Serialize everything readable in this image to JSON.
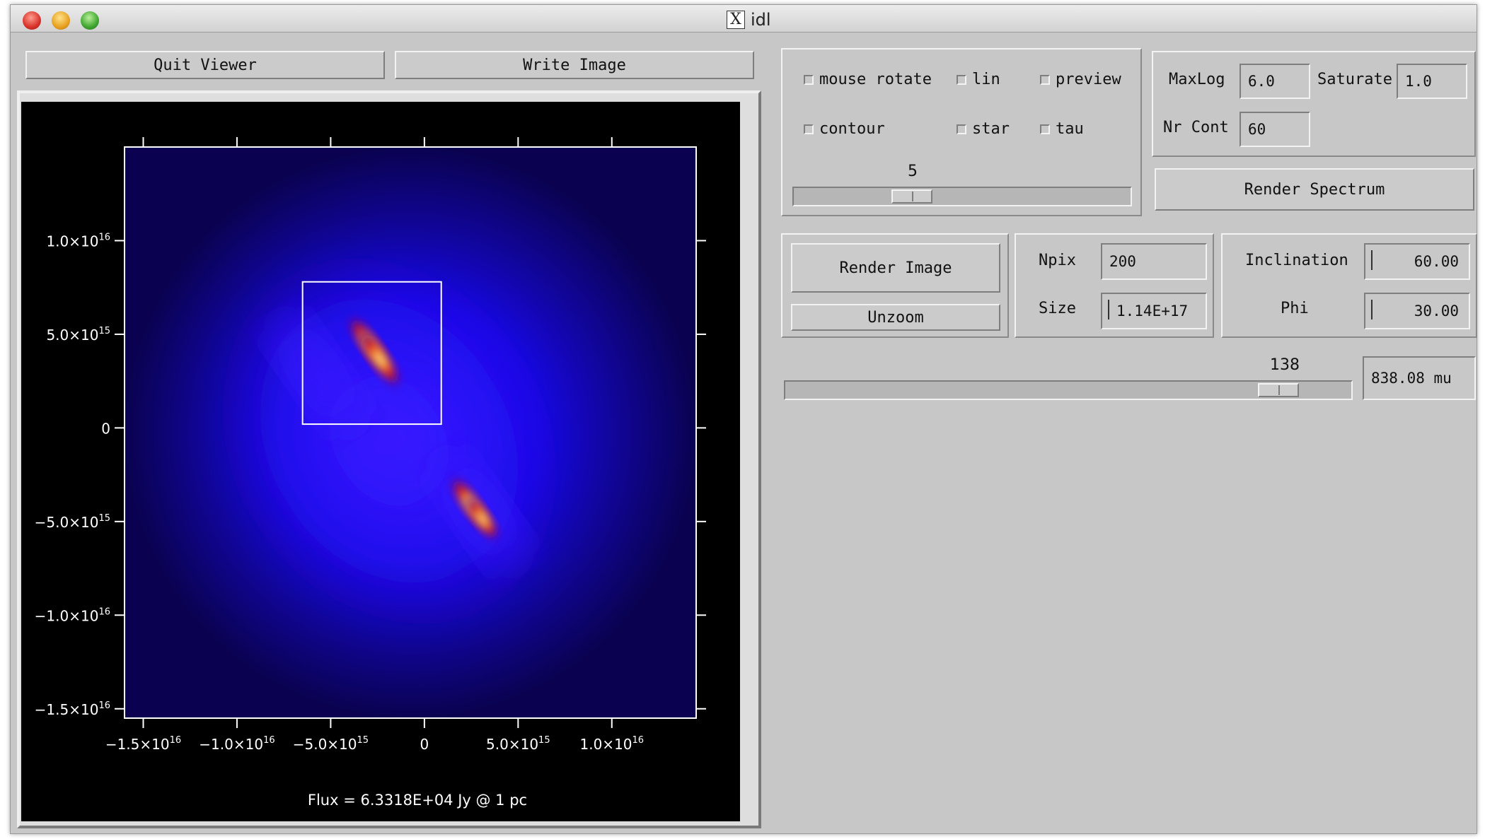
{
  "window": {
    "title": "idl"
  },
  "buttons": {
    "quit": "Quit Viewer",
    "write": "Write Image",
    "render_spectrum": "Render Spectrum",
    "render_image": "Render Image",
    "unzoom": "Unzoom"
  },
  "checkboxes": {
    "mouse_rotate": "mouse rotate",
    "lin": "lin",
    "preview": "preview",
    "contour": "contour",
    "star": "star",
    "tau": "tau"
  },
  "fields": {
    "maxlog_label": "MaxLog",
    "maxlog_value": "6.0",
    "saturate_label": "Saturate",
    "saturate_value": "1.0",
    "nrcont_label": "Nr Cont",
    "nrcont_value": "60",
    "npix_label": "Npix",
    "npix_value": "200",
    "size_label": "Size",
    "size_value": "1.14E+17",
    "inclination_label": "Inclination",
    "inclination_value": "60.00",
    "phi_label": "Phi",
    "phi_value": "30.00",
    "wavelength_value": "838.08 mu"
  },
  "sliders": {
    "top_value": "5",
    "top_fraction": 0.33,
    "wavelength_index": "138",
    "wavelength_fraction": 0.9
  },
  "plot": {
    "flux_text": "Flux = 6.3318E+04 Jy @ 1 pc",
    "colors": {
      "background": "#000000",
      "emission": "#1a10ff",
      "hot": "#ffe97a"
    },
    "x_ticks": [
      {
        "label": "−1.5×10",
        "exp": "16",
        "value": -1.5e+16
      },
      {
        "label": "−1.0×10",
        "exp": "16",
        "value": -1e+16
      },
      {
        "label": "−5.0×10",
        "exp": "15",
        "value": -5000000000000000.0
      },
      {
        "label": "0",
        "exp": "",
        "value": 0
      },
      {
        "label": "5.0×10",
        "exp": "15",
        "value": 5000000000000000.0
      },
      {
        "label": "1.0×10",
        "exp": "16",
        "value": 1e+16
      }
    ],
    "y_ticks": [
      {
        "label": "1.0×10",
        "exp": "16",
        "value": 1e+16
      },
      {
        "label": "5.0×10",
        "exp": "15",
        "value": 5000000000000000.0
      },
      {
        "label": "0",
        "exp": "",
        "value": 0
      },
      {
        "label": "−5.0×10",
        "exp": "15",
        "value": -5000000000000000.0
      },
      {
        "label": "−1.0×10",
        "exp": "16",
        "value": -1e+16
      },
      {
        "label": "−1.5×10",
        "exp": "16",
        "value": -1.5e+16
      }
    ],
    "zoom_box": {
      "x0": -6500000000000000.0,
      "x1": 900000000000000.0,
      "y0": 200000000000000.0,
      "y1": 7800000000000000.0
    }
  }
}
